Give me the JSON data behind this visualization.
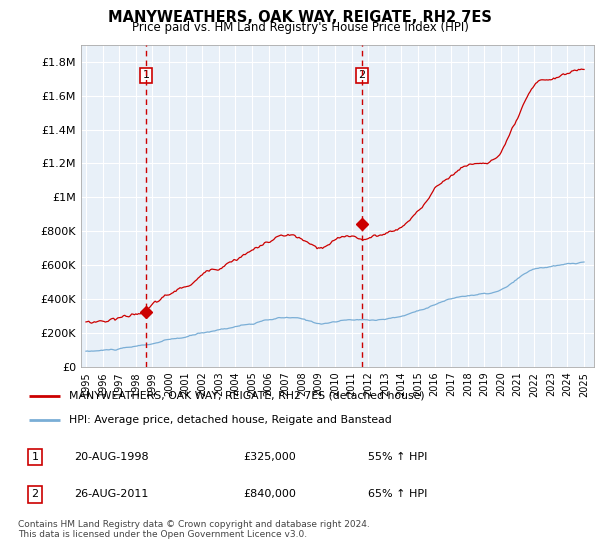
{
  "title": "MANYWEATHERS, OAK WAY, REIGATE, RH2 7ES",
  "subtitle": "Price paid vs. HM Land Registry's House Price Index (HPI)",
  "legend_line1": "MANYWEATHERS, OAK WAY, REIGATE, RH2 7ES (detached house)",
  "legend_line2": "HPI: Average price, detached house, Reigate and Banstead",
  "footnote1": "Contains HM Land Registry data © Crown copyright and database right 2024.",
  "footnote2": "This data is licensed under the Open Government Licence v3.0.",
  "sale1_label": "1",
  "sale1_date": "20-AUG-1998",
  "sale1_price": "£325,000",
  "sale1_hpi": "55% ↑ HPI",
  "sale2_label": "2",
  "sale2_date": "26-AUG-2011",
  "sale2_price": "£840,000",
  "sale2_hpi": "65% ↑ HPI",
  "ylim": [
    0,
    1900000
  ],
  "yticks": [
    0,
    200000,
    400000,
    600000,
    800000,
    1000000,
    1200000,
    1400000,
    1600000,
    1800000
  ],
  "ytick_labels": [
    "£0",
    "£200K",
    "£400K",
    "£600K",
    "£800K",
    "£1M",
    "£1.2M",
    "£1.4M",
    "£1.6M",
    "£1.8M"
  ],
  "red_color": "#cc0000",
  "blue_color": "#7aaed6",
  "chart_bg": "#e8f0f8",
  "sale_dot_color": "#cc0000",
  "vline_color": "#cc0000",
  "background_color": "#ffffff",
  "grid_color": "#ffffff",
  "sale1_x": 1998.62,
  "sale1_y": 325000,
  "sale2_x": 2011.62,
  "sale2_y": 840000,
  "xlim_left": 1994.7,
  "xlim_right": 2025.6,
  "xtick_years": [
    1995,
    1996,
    1997,
    1998,
    1999,
    2000,
    2001,
    2002,
    2003,
    2004,
    2005,
    2006,
    2007,
    2008,
    2009,
    2010,
    2011,
    2012,
    2013,
    2014,
    2015,
    2016,
    2017,
    2018,
    2019,
    2020,
    2021,
    2022,
    2023,
    2024,
    2025
  ]
}
